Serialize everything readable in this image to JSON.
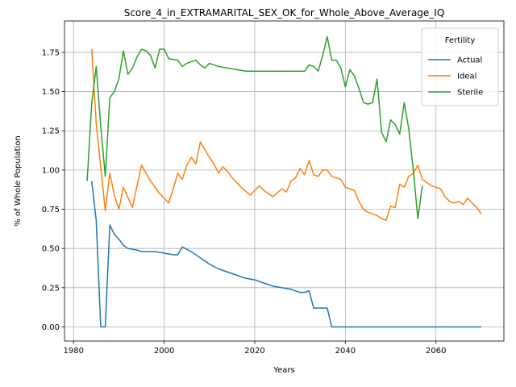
{
  "chart_data": {
    "type": "line",
    "title": "Score_4_in_EXTRAMARITAL_SEX_OK_for_Whole_Above_Average_IQ",
    "xlabel": "Years",
    "ylabel": "% of Whole Population",
    "xlim": [
      1978,
      2075
    ],
    "ylim": [
      -0.09,
      1.95
    ],
    "xticks": [
      1980,
      2000,
      2020,
      2040,
      2060
    ],
    "yticks": [
      0.0,
      0.25,
      0.5,
      0.75,
      1.0,
      1.25,
      1.5,
      1.75
    ],
    "xtick_labels": [
      "1980",
      "2000",
      "2020",
      "2040",
      "2060"
    ],
    "ytick_labels": [
      "0.00",
      "0.25",
      "0.50",
      "0.75",
      "1.00",
      "1.25",
      "1.50",
      "1.75"
    ],
    "grid": true,
    "legend_title": "Fertility",
    "legend_position": "top-right",
    "series": [
      {
        "name": "Actual",
        "color": "#1f77b4",
        "points": [
          [
            1984,
            0.93
          ],
          [
            1985,
            0.68
          ],
          [
            1986,
            0.0
          ],
          [
            1987,
            0.0
          ],
          [
            1988,
            0.65
          ],
          [
            1989,
            0.59
          ],
          [
            1990,
            0.56
          ],
          [
            1991,
            0.52
          ],
          [
            1992,
            0.5
          ],
          [
            1994,
            0.49
          ],
          [
            1995,
            0.48
          ],
          [
            1998,
            0.48
          ],
          [
            2000,
            0.47
          ],
          [
            2002,
            0.46
          ],
          [
            2003,
            0.46
          ],
          [
            2004,
            0.51
          ],
          [
            2006,
            0.48
          ],
          [
            2008,
            0.44
          ],
          [
            2009,
            0.42
          ],
          [
            2010,
            0.4
          ],
          [
            2012,
            0.37
          ],
          [
            2014,
            0.35
          ],
          [
            2016,
            0.33
          ],
          [
            2018,
            0.31
          ],
          [
            2020,
            0.3
          ],
          [
            2022,
            0.28
          ],
          [
            2024,
            0.26
          ],
          [
            2026,
            0.25
          ],
          [
            2028,
            0.24
          ],
          [
            2030,
            0.22
          ],
          [
            2031,
            0.22
          ],
          [
            2032,
            0.23
          ],
          [
            2033,
            0.12
          ],
          [
            2036,
            0.12
          ],
          [
            2037,
            0.0
          ],
          [
            2070,
            0.0
          ]
        ]
      },
      {
        "name": "Ideal",
        "color": "#ff7f0e",
        "points": [
          [
            1984,
            1.77
          ],
          [
            1985,
            1.3
          ],
          [
            1986,
            1.02
          ],
          [
            1987,
            0.74
          ],
          [
            1988,
            0.98
          ],
          [
            1989,
            0.84
          ],
          [
            1990,
            0.75
          ],
          [
            1991,
            0.89
          ],
          [
            1993,
            0.76
          ],
          [
            1994,
            0.9
          ],
          [
            1995,
            1.03
          ],
          [
            1996,
            0.98
          ],
          [
            1997,
            0.93
          ],
          [
            1998,
            0.89
          ],
          [
            1999,
            0.85
          ],
          [
            2001,
            0.79
          ],
          [
            2002,
            0.88
          ],
          [
            2003,
            0.98
          ],
          [
            2004,
            0.94
          ],
          [
            2005,
            1.03
          ],
          [
            2006,
            1.08
          ],
          [
            2007,
            1.04
          ],
          [
            2008,
            1.18
          ],
          [
            2009,
            1.13
          ],
          [
            2010,
            1.08
          ],
          [
            2011,
            1.04
          ],
          [
            2012,
            0.98
          ],
          [
            2013,
            1.02
          ],
          [
            2014,
            0.99
          ],
          [
            2015,
            0.95
          ],
          [
            2017,
            0.89
          ],
          [
            2019,
            0.84
          ],
          [
            2021,
            0.9
          ],
          [
            2022,
            0.87
          ],
          [
            2024,
            0.83
          ],
          [
            2026,
            0.88
          ],
          [
            2027,
            0.86
          ],
          [
            2028,
            0.93
          ],
          [
            2029,
            0.95
          ],
          [
            2030,
            1.01
          ],
          [
            2031,
            0.97
          ],
          [
            2032,
            1.06
          ],
          [
            2033,
            0.97
          ],
          [
            2034,
            0.96
          ],
          [
            2035,
            1.0
          ],
          [
            2036,
            1.0
          ],
          [
            2037,
            0.96
          ],
          [
            2039,
            0.94
          ],
          [
            2040,
            0.89
          ],
          [
            2041,
            0.88
          ],
          [
            2042,
            0.87
          ],
          [
            2043,
            0.8
          ],
          [
            2044,
            0.75
          ],
          [
            2045,
            0.73
          ],
          [
            2047,
            0.71
          ],
          [
            2048,
            0.69
          ],
          [
            2049,
            0.68
          ],
          [
            2050,
            0.77
          ],
          [
            2051,
            0.76
          ],
          [
            2052,
            0.91
          ],
          [
            2053,
            0.89
          ],
          [
            2054,
            0.96
          ],
          [
            2055,
            0.98
          ],
          [
            2056,
            1.03
          ],
          [
            2057,
            0.94
          ],
          [
            2059,
            0.9
          ],
          [
            2061,
            0.88
          ],
          [
            2062,
            0.83
          ],
          [
            2063,
            0.8
          ],
          [
            2064,
            0.79
          ],
          [
            2065,
            0.8
          ],
          [
            2066,
            0.78
          ],
          [
            2067,
            0.82
          ],
          [
            2068,
            0.79
          ],
          [
            2069,
            0.76
          ],
          [
            2070,
            0.72
          ]
        ]
      },
      {
        "name": "Sterile",
        "color": "#2ca02c",
        "points": [
          [
            1983,
            0.93
          ],
          [
            1984,
            1.42
          ],
          [
            1985,
            1.66
          ],
          [
            1986,
            1.28
          ],
          [
            1987,
            0.96
          ],
          [
            1988,
            1.46
          ],
          [
            1989,
            1.5
          ],
          [
            1990,
            1.58
          ],
          [
            1991,
            1.76
          ],
          [
            1992,
            1.61
          ],
          [
            1993,
            1.65
          ],
          [
            1994,
            1.72
          ],
          [
            1995,
            1.77
          ],
          [
            1996,
            1.76
          ],
          [
            1997,
            1.73
          ],
          [
            1998,
            1.65
          ],
          [
            1999,
            1.77
          ],
          [
            2000,
            1.77
          ],
          [
            2001,
            1.71
          ],
          [
            2003,
            1.7
          ],
          [
            2004,
            1.66
          ],
          [
            2005,
            1.68
          ],
          [
            2006,
            1.69
          ],
          [
            2007,
            1.7
          ],
          [
            2008,
            1.67
          ],
          [
            2009,
            1.65
          ],
          [
            2010,
            1.68
          ],
          [
            2012,
            1.66
          ],
          [
            2014,
            1.65
          ],
          [
            2016,
            1.64
          ],
          [
            2018,
            1.63
          ],
          [
            2020,
            1.63
          ],
          [
            2031,
            1.63
          ],
          [
            2032,
            1.67
          ],
          [
            2033,
            1.66
          ],
          [
            2034,
            1.63
          ],
          [
            2035,
            1.73
          ],
          [
            2036,
            1.85
          ],
          [
            2037,
            1.7
          ],
          [
            2038,
            1.7
          ],
          [
            2039,
            1.65
          ],
          [
            2040,
            1.53
          ],
          [
            2041,
            1.64
          ],
          [
            2042,
            1.6
          ],
          [
            2043,
            1.52
          ],
          [
            2044,
            1.43
          ],
          [
            2045,
            1.42
          ],
          [
            2046,
            1.43
          ],
          [
            2047,
            1.58
          ],
          [
            2048,
            1.24
          ],
          [
            2049,
            1.18
          ],
          [
            2050,
            1.32
          ],
          [
            2051,
            1.29
          ],
          [
            2052,
            1.23
          ],
          [
            2053,
            1.43
          ],
          [
            2054,
            1.26
          ],
          [
            2055,
            1.0
          ],
          [
            2056,
            0.69
          ],
          [
            2057,
            0.9
          ]
        ]
      }
    ]
  }
}
